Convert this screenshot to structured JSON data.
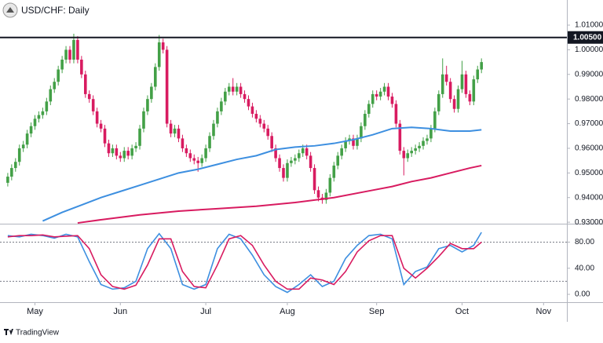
{
  "chart_data": [
    {
      "type": "candlestick",
      "title": "USD/CHF: Daily",
      "up_color": "#43a047",
      "down_color": "#d81b60",
      "ohlc": [
        [
          0.946,
          0.95,
          0.9445,
          0.9485
        ],
        [
          0.9485,
          0.9535,
          0.947,
          0.952
        ],
        [
          0.952,
          0.956,
          0.9505,
          0.9545
        ],
        [
          0.9545,
          0.9615,
          0.953,
          0.96
        ],
        [
          0.96,
          0.963,
          0.9585,
          0.9615
        ],
        [
          0.9615,
          0.9675,
          0.96,
          0.966
        ],
        [
          0.966,
          0.9705,
          0.9645,
          0.969
        ],
        [
          0.969,
          0.9735,
          0.9675,
          0.972
        ],
        [
          0.972,
          0.975,
          0.9705,
          0.9735
        ],
        [
          0.9735,
          0.9765,
          0.972,
          0.975
        ],
        [
          0.975,
          0.9805,
          0.9735,
          0.979
        ],
        [
          0.979,
          0.9855,
          0.9775,
          0.984
        ],
        [
          0.984,
          0.9885,
          0.9825,
          0.987
        ],
        [
          0.987,
          0.9935,
          0.9855,
          0.992
        ],
        [
          0.992,
          0.9975,
          0.9905,
          0.996
        ],
        [
          0.996,
          1.0015,
          0.9945,
          1.0
        ],
        [
          1.0,
          1.0015,
          0.9945,
          0.996
        ],
        [
          0.996,
          1.0065,
          0.9945,
          1.004
        ],
        [
          1.004,
          1.0055,
          0.9945,
          0.996
        ],
        [
          0.996,
          0.9975,
          0.9885,
          0.99
        ],
        [
          0.99,
          0.9915,
          0.9805,
          0.982
        ],
        [
          0.982,
          0.9835,
          0.9785,
          0.98
        ],
        [
          0.98,
          0.9815,
          0.9735,
          0.975
        ],
        [
          0.975,
          0.9765,
          0.9685,
          0.97
        ],
        [
          0.97,
          0.9715,
          0.9665,
          0.968
        ],
        [
          0.968,
          0.9695,
          0.9605,
          0.962
        ],
        [
          0.962,
          0.9635,
          0.9565,
          0.958
        ],
        [
          0.958,
          0.9615,
          0.9565,
          0.96
        ],
        [
          0.96,
          0.9615,
          0.9555,
          0.957
        ],
        [
          0.957,
          0.9585,
          0.9545,
          0.956
        ],
        [
          0.956,
          0.9605,
          0.9545,
          0.959
        ],
        [
          0.959,
          0.9605,
          0.9555,
          0.957
        ],
        [
          0.957,
          0.9615,
          0.9555,
          0.96
        ],
        [
          0.96,
          0.9625,
          0.9585,
          0.961
        ],
        [
          0.961,
          0.9695,
          0.9595,
          0.968
        ],
        [
          0.968,
          0.9765,
          0.9665,
          0.975
        ],
        [
          0.975,
          0.9815,
          0.9735,
          0.98
        ],
        [
          0.98,
          0.9865,
          0.9785,
          0.985
        ],
        [
          0.985,
          0.9945,
          0.9835,
          0.993
        ],
        [
          0.993,
          1.006,
          0.9915,
          1.003
        ],
        [
          1.003,
          1.0045,
          0.9985,
          1.0
        ],
        [
          1.0,
          1.0015,
          0.9685,
          0.97
        ],
        [
          0.97,
          0.9715,
          0.9645,
          0.966
        ],
        [
          0.966,
          0.9695,
          0.9645,
          0.968
        ],
        [
          0.968,
          0.9695,
          0.9625,
          0.964
        ],
        [
          0.964,
          0.9655,
          0.9585,
          0.96
        ],
        [
          0.96,
          0.9615,
          0.9565,
          0.958
        ],
        [
          0.958,
          0.9595,
          0.9545,
          0.956
        ],
        [
          0.956,
          0.9575,
          0.9535,
          0.955
        ],
        [
          0.955,
          0.9565,
          0.9505,
          0.954
        ],
        [
          0.954,
          0.9575,
          0.9525,
          0.956
        ],
        [
          0.956,
          0.9615,
          0.9545,
          0.96
        ],
        [
          0.96,
          0.9665,
          0.9585,
          0.965
        ],
        [
          0.965,
          0.9715,
          0.9635,
          0.97
        ],
        [
          0.97,
          0.9765,
          0.9685,
          0.975
        ],
        [
          0.975,
          0.9805,
          0.9735,
          0.979
        ],
        [
          0.979,
          0.9845,
          0.9775,
          0.983
        ],
        [
          0.983,
          0.9865,
          0.9815,
          0.985
        ],
        [
          0.985,
          0.9885,
          0.9815,
          0.983
        ],
        [
          0.983,
          0.9865,
          0.9815,
          0.985
        ],
        [
          0.985,
          0.9865,
          0.9805,
          0.982
        ],
        [
          0.982,
          0.9835,
          0.9785,
          0.98
        ],
        [
          0.98,
          0.9815,
          0.9755,
          0.977
        ],
        [
          0.977,
          0.9785,
          0.9725,
          0.974
        ],
        [
          0.974,
          0.9755,
          0.9705,
          0.972
        ],
        [
          0.972,
          0.9735,
          0.9685,
          0.97
        ],
        [
          0.97,
          0.9715,
          0.9665,
          0.968
        ],
        [
          0.968,
          0.9695,
          0.9635,
          0.965
        ],
        [
          0.965,
          0.9665,
          0.9585,
          0.96
        ],
        [
          0.96,
          0.9615,
          0.9545,
          0.956
        ],
        [
          0.956,
          0.9575,
          0.9505,
          0.952
        ],
        [
          0.952,
          0.9535,
          0.9465,
          0.948
        ],
        [
          0.948,
          0.9555,
          0.9465,
          0.954
        ],
        [
          0.954,
          0.9565,
          0.9525,
          0.955
        ],
        [
          0.955,
          0.9575,
          0.9535,
          0.956
        ],
        [
          0.956,
          0.9595,
          0.9545,
          0.958
        ],
        [
          0.958,
          0.9615,
          0.9565,
          0.96
        ],
        [
          0.96,
          0.9615,
          0.9555,
          0.957
        ],
        [
          0.957,
          0.9585,
          0.9505,
          0.952
        ],
        [
          0.952,
          0.9535,
          0.9415,
          0.943
        ],
        [
          0.943,
          0.9445,
          0.9385,
          0.94
        ],
        [
          0.94,
          0.9415,
          0.9375,
          0.939
        ],
        [
          0.939,
          0.9435,
          0.9375,
          0.942
        ],
        [
          0.942,
          0.9495,
          0.9405,
          0.948
        ],
        [
          0.948,
          0.9545,
          0.9465,
          0.953
        ],
        [
          0.953,
          0.9585,
          0.9515,
          0.957
        ],
        [
          0.957,
          0.9615,
          0.9555,
          0.96
        ],
        [
          0.96,
          0.9645,
          0.9585,
          0.963
        ],
        [
          0.963,
          0.9655,
          0.9615,
          0.964
        ],
        [
          0.964,
          0.9655,
          0.9595,
          0.961
        ],
        [
          0.961,
          0.9655,
          0.9595,
          0.964
        ],
        [
          0.964,
          0.9705,
          0.9625,
          0.969
        ],
        [
          0.969,
          0.9755,
          0.9675,
          0.974
        ],
        [
          0.974,
          0.9795,
          0.9725,
          0.978
        ],
        [
          0.978,
          0.9835,
          0.9765,
          0.982
        ],
        [
          0.982,
          0.9835,
          0.9795,
          0.981
        ],
        [
          0.981,
          0.9845,
          0.9795,
          0.983
        ],
        [
          0.983,
          0.9865,
          0.9815,
          0.985
        ],
        [
          0.985,
          0.9865,
          0.9795,
          0.981
        ],
        [
          0.981,
          0.9825,
          0.9765,
          0.978
        ],
        [
          0.978,
          0.9795,
          0.9685,
          0.97
        ],
        [
          0.97,
          0.9715,
          0.9575,
          0.959
        ],
        [
          0.959,
          0.9605,
          0.949,
          0.956
        ],
        [
          0.956,
          0.9595,
          0.9545,
          0.958
        ],
        [
          0.958,
          0.9605,
          0.9565,
          0.959
        ],
        [
          0.959,
          0.9615,
          0.9575,
          0.96
        ],
        [
          0.96,
          0.9625,
          0.9585,
          0.961
        ],
        [
          0.961,
          0.9645,
          0.9595,
          0.963
        ],
        [
          0.963,
          0.9655,
          0.9615,
          0.964
        ],
        [
          0.964,
          0.9695,
          0.9625,
          0.968
        ],
        [
          0.968,
          0.9765,
          0.9665,
          0.975
        ],
        [
          0.975,
          0.9835,
          0.9735,
          0.982
        ],
        [
          0.982,
          0.9965,
          0.9805,
          0.99
        ],
        [
          0.99,
          0.9935,
          0.9855,
          0.987
        ],
        [
          0.987,
          0.9885,
          0.9785,
          0.98
        ],
        [
          0.98,
          0.9815,
          0.9745,
          0.976
        ],
        [
          0.976,
          0.9855,
          0.9745,
          0.984
        ],
        [
          0.984,
          0.9955,
          0.9825,
          0.99
        ],
        [
          0.99,
          0.9915,
          0.9805,
          0.982
        ],
        [
          0.982,
          0.9835,
          0.9775,
          0.979
        ],
        [
          0.979,
          0.9895,
          0.9775,
          0.988
        ],
        [
          0.988,
          0.9935,
          0.9865,
          0.992
        ],
        [
          0.992,
          0.9965,
          0.9905,
          0.995
        ]
      ],
      "lines": [
        {
          "color": "#3d8fe0",
          "x": [
            9,
            14,
            19,
            24,
            29,
            34,
            39,
            44,
            49,
            54,
            59,
            64,
            69,
            74,
            79,
            84,
            89,
            94,
            99,
            104,
            109,
            114,
            119,
            122
          ],
          "values": [
            0.9305,
            0.934,
            0.937,
            0.94,
            0.9425,
            0.945,
            0.9475,
            0.95,
            0.9515,
            0.9535,
            0.9555,
            0.957,
            0.9595,
            0.9605,
            0.961,
            0.962,
            0.9635,
            0.9655,
            0.968,
            0.9685,
            0.968,
            0.967,
            0.967,
            0.9675
          ]
        },
        {
          "color": "#d81b60",
          "x": [
            18,
            24,
            34,
            44,
            54,
            64,
            74,
            84,
            94,
            99,
            104,
            109,
            114,
            119,
            122
          ],
          "values": [
            0.9297,
            0.931,
            0.933,
            0.9345,
            0.9355,
            0.9365,
            0.938,
            0.94,
            0.943,
            0.9445,
            0.9465,
            0.948,
            0.95,
            0.952,
            0.953
          ]
        }
      ],
      "hline": {
        "value": 1.005,
        "label": "1.00500"
      },
      "ylim": [
        0.9294,
        1.0202
      ],
      "yticks": [
        {
          "value": 1.01,
          "label": "1.01000"
        },
        {
          "value": 1.0,
          "label": "1.00000"
        },
        {
          "value": 0.99,
          "label": "0.99000"
        },
        {
          "value": 0.98,
          "label": "0.98000"
        },
        {
          "value": 0.97,
          "label": "0.97000"
        },
        {
          "value": 0.96,
          "label": "0.96000"
        },
        {
          "value": 0.95,
          "label": "0.95000"
        },
        {
          "value": 0.94,
          "label": "0.94000"
        },
        {
          "value": 0.93,
          "label": "0.93000"
        }
      ],
      "xlim": [
        -2,
        144
      ],
      "xticks": [
        {
          "value": 7,
          "label": "May"
        },
        {
          "value": 29,
          "label": "Jun"
        },
        {
          "value": 51,
          "label": "Jul"
        },
        {
          "value": 72,
          "label": "Aug"
        },
        {
          "value": 95,
          "label": "Sep"
        },
        {
          "value": 117,
          "label": "Oct"
        },
        {
          "value": 138,
          "label": "Nov"
        }
      ],
      "brand": "TradingView"
    },
    {
      "type": "line",
      "x": [
        0,
        3,
        6,
        9,
        12,
        15,
        18,
        21,
        24,
        27,
        30,
        33,
        36,
        39,
        42,
        45,
        48,
        51,
        54,
        57,
        60,
        63,
        66,
        69,
        72,
        75,
        78,
        81,
        84,
        87,
        90,
        93,
        96,
        99,
        102,
        105,
        108,
        111,
        114,
        117,
        120,
        122
      ],
      "series": [
        {
          "color": "#3d8fe0",
          "values": [
            90,
            88,
            92,
            90,
            86,
            92,
            88,
            50,
            15,
            8,
            10,
            20,
            70,
            93,
            70,
            15,
            8,
            15,
            70,
            92,
            85,
            60,
            30,
            12,
            3,
            15,
            30,
            12,
            20,
            55,
            75,
            90,
            92,
            85,
            15,
            35,
            42,
            70,
            75,
            65,
            75,
            95
          ]
        },
        {
          "color": "#d81b60",
          "values": [
            88,
            90,
            90,
            91,
            88,
            89,
            90,
            70,
            30,
            12,
            8,
            14,
            45,
            85,
            85,
            35,
            12,
            10,
            45,
            85,
            90,
            75,
            45,
            20,
            8,
            8,
            25,
            22,
            15,
            35,
            65,
            82,
            90,
            90,
            40,
            25,
            40,
            58,
            78,
            70,
            70,
            80
          ]
        }
      ],
      "levels": [
        80,
        20
      ],
      "ylim": [
        -12,
        107
      ],
      "yticks": [
        {
          "value": 80,
          "label": "80.00"
        },
        {
          "value": 40,
          "label": "40.00"
        },
        {
          "value": 0,
          "label": "0.00"
        }
      ]
    }
  ]
}
